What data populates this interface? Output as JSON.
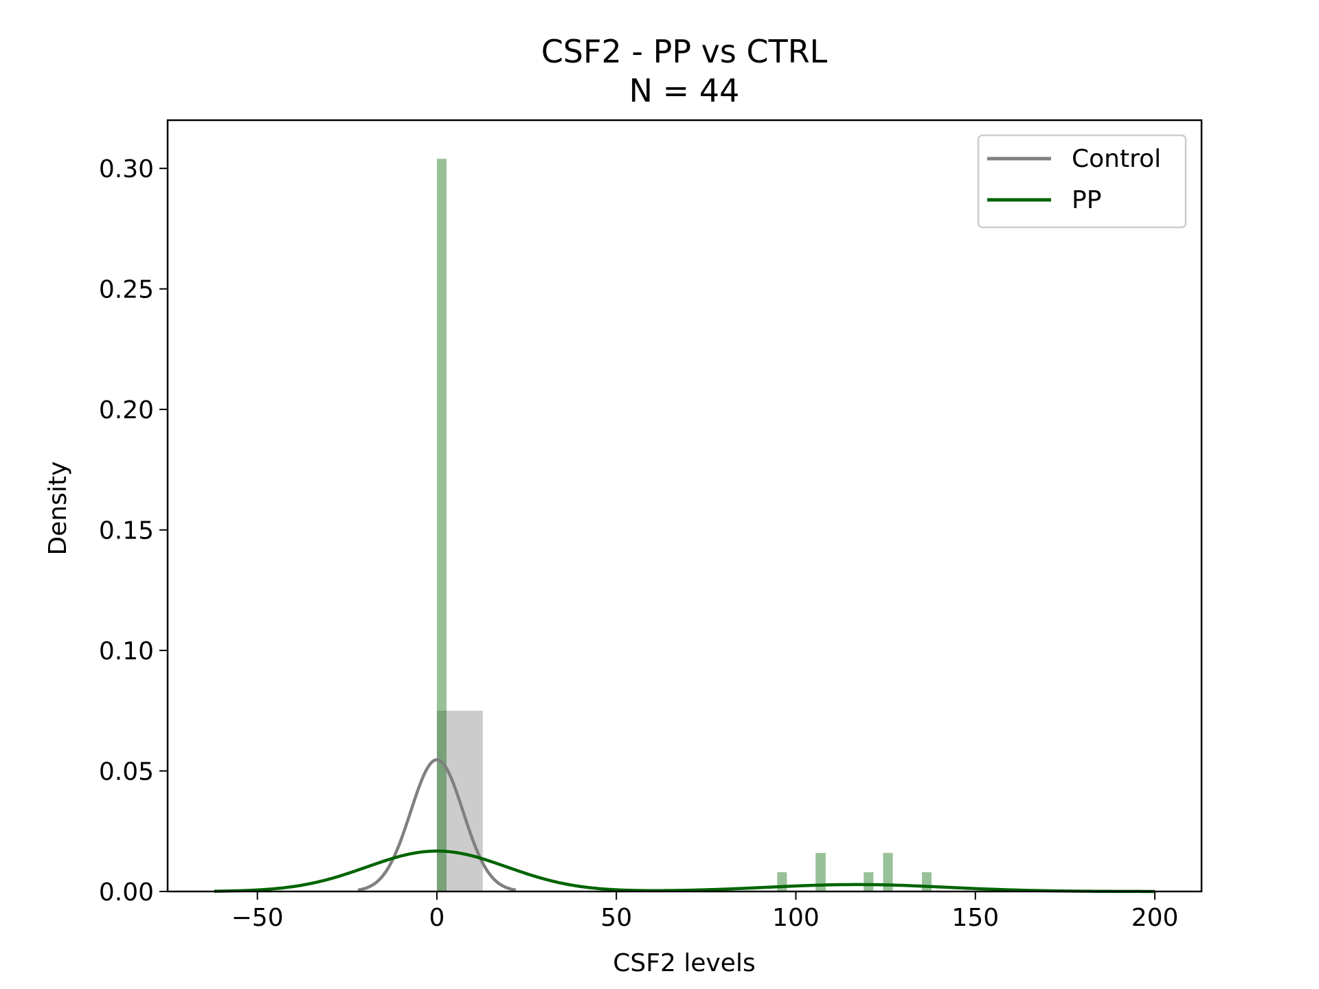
{
  "chart_data": {
    "type": "histogram-kde",
    "title": "CSF2 - PP vs CTRL",
    "subtitle": "N = 44",
    "xlabel": "CSF2 levels",
    "ylabel": "Density",
    "xlim": [
      -75,
      213
    ],
    "ylim": [
      0,
      0.32
    ],
    "x_ticks": [
      -50,
      0,
      50,
      100,
      150,
      200
    ],
    "x_tick_labels": [
      "−50",
      "0",
      "50",
      "100",
      "150",
      "200"
    ],
    "y_ticks": [
      0.0,
      0.05,
      0.1,
      0.15,
      0.2,
      0.25,
      0.3
    ],
    "y_tick_labels": [
      "0.00",
      "0.05",
      "0.10",
      "0.15",
      "0.20",
      "0.25",
      "0.30"
    ],
    "grid": false,
    "legend_position": "top-right",
    "series": [
      {
        "name": "Control",
        "line_color": "#808080",
        "hist_color": "#808080",
        "hist_bins": [
          {
            "x0": 0,
            "x1": 12.8,
            "density": 0.075
          }
        ],
        "kde": {
          "type": "gaussian_mixture",
          "range": [
            -22,
            22
          ],
          "components": [
            {
              "weight": 1.0,
              "mean": 0,
              "sd": 7.3
            }
          ]
        }
      },
      {
        "name": "PP",
        "line_color": "#006400",
        "hist_color": "#006400",
        "hist_bins": [
          {
            "x0": 0,
            "x1": 2.7,
            "density": 0.304
          },
          {
            "x0": 94.8,
            "x1": 97.5,
            "density": 0.008
          },
          {
            "x0": 105.5,
            "x1": 108.3,
            "density": 0.016
          },
          {
            "x0": 118.9,
            "x1": 121.6,
            "density": 0.008
          },
          {
            "x0": 124.3,
            "x1": 127.0,
            "density": 0.016
          },
          {
            "x0": 135.1,
            "x1": 137.8,
            "density": 0.008
          }
        ],
        "kde": {
          "type": "gaussian_mixture",
          "range": [
            -62,
            200
          ],
          "components": [
            {
              "weight": 0.82,
              "mean": 0,
              "sd": 19.5
            },
            {
              "weight": 0.18,
              "mean": 117,
              "sd": 25
            }
          ]
        }
      }
    ]
  }
}
